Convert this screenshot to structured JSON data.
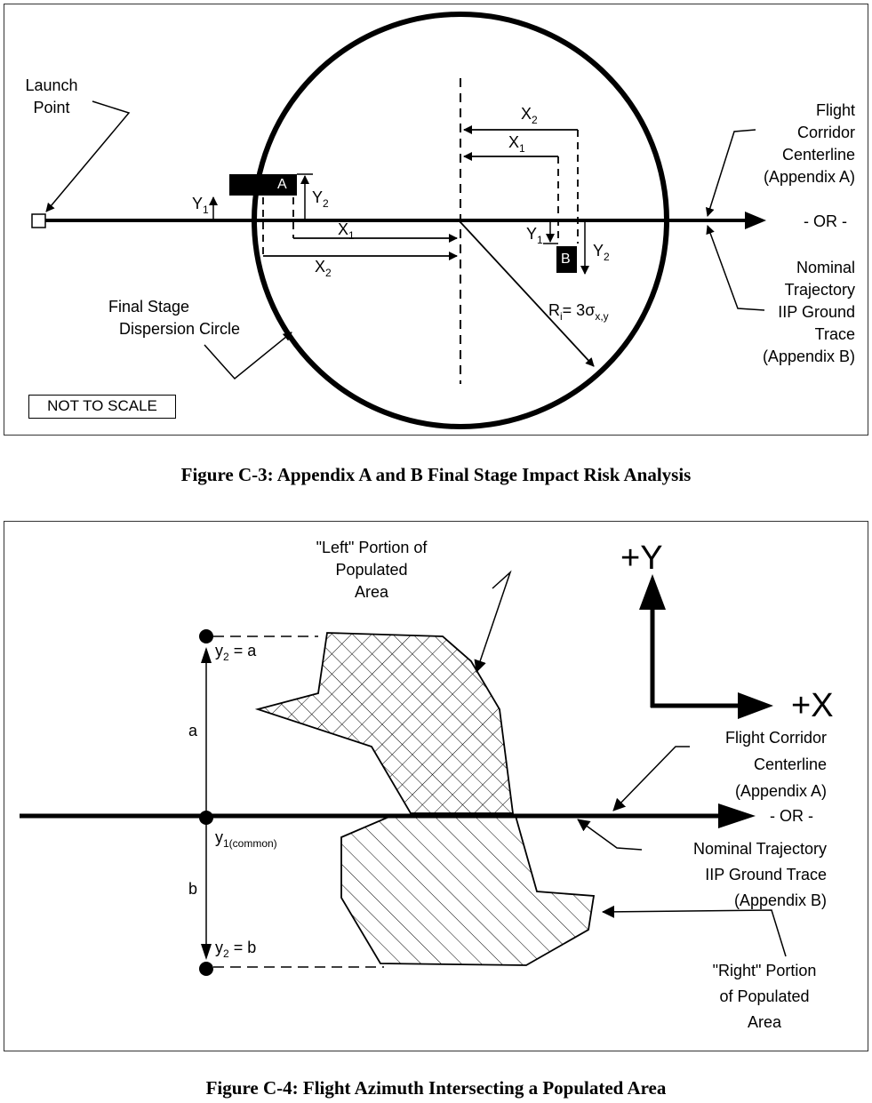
{
  "figure_c3": {
    "caption": "Figure C-3: Appendix A and B Final Stage Impact Risk Analysis",
    "launch_point": [
      "Launch",
      "Point"
    ],
    "centerline": [
      "Flight",
      "Corridor",
      "Centerline",
      "(Appendix A)"
    ],
    "or_label": "- OR -",
    "nominal": [
      "Nominal",
      "Trajectory",
      "IIP Ground",
      "Trace",
      "(Appendix B)"
    ],
    "dispersion": [
      "Final Stage",
      "Dispersion  Circle"
    ],
    "not_to_scale": "NOT TO SCALE",
    "area_a": "A",
    "area_b": "B",
    "y1": "Y",
    "y2": "Y",
    "x1": "X",
    "x2": "X",
    "sub1": "1",
    "sub2": "2",
    "radius_label": "R",
    "radius_sub": "i",
    "radius_eq": "= 3σ",
    "radius_sub2": "x,y"
  },
  "figure_c4": {
    "caption": "Figure C-4: Flight Azimuth Intersecting a Populated Area",
    "left_portion": [
      "\"Left\" Portion of",
      "Populated",
      "Area"
    ],
    "plus_y": "+Y",
    "plus_x": "+X",
    "centerline": [
      "Flight Corridor",
      "Centerline",
      "(Appendix A)"
    ],
    "or_label": "- OR -",
    "nominal": [
      "Nominal Trajectory",
      "IIP Ground Trace",
      "(Appendix B)"
    ],
    "right_portion": [
      "\"Right\" Portion",
      "of Populated",
      "Area"
    ],
    "y2_a": "y",
    "y2_a_sub": "2",
    "y2_a_rest": " = a",
    "y2_b": "y",
    "y2_b_sub": "2",
    "y2_b_rest": " = b",
    "a_label": "a",
    "b_label": "b",
    "y1_common": "y",
    "y1_common_sub": "1(common)"
  }
}
